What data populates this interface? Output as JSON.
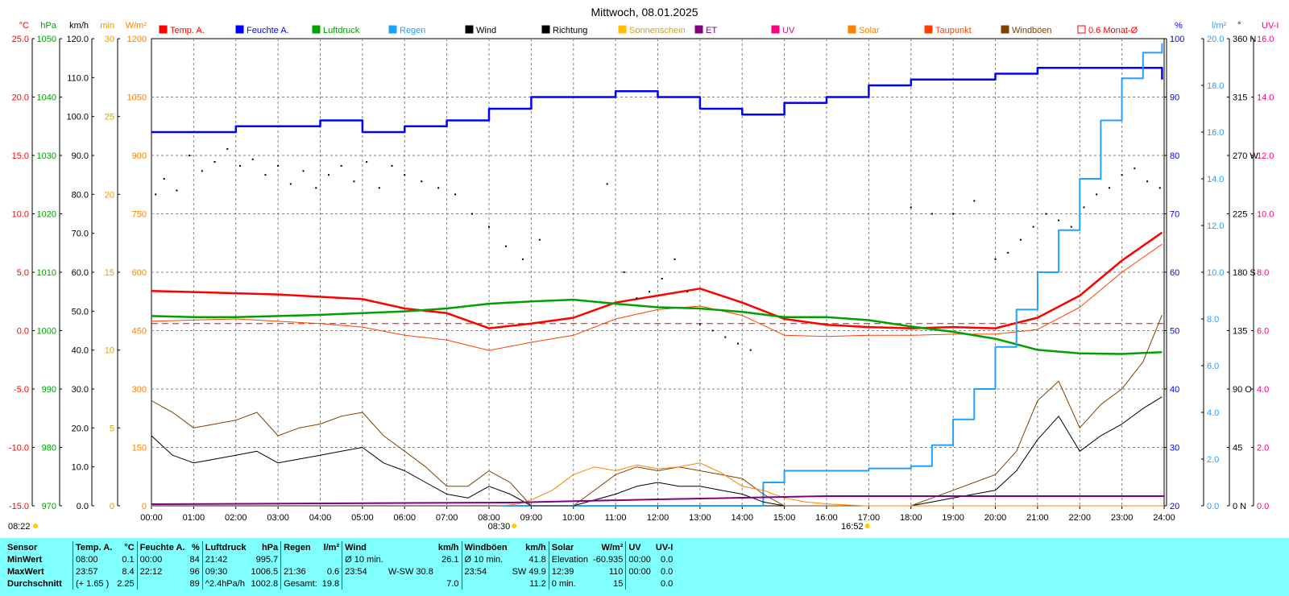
{
  "chart_data": {
    "type": "line",
    "title": "Mittwoch, 08.01.2025",
    "x_ticks": [
      "00:00",
      "01:00",
      "02:00",
      "03:00",
      "04:00",
      "05:00",
      "06:00",
      "07:00",
      "08:00",
      "09:00",
      "10:00",
      "11:00",
      "12:00",
      "13:00",
      "14:00",
      "15:00",
      "16:00",
      "17:00",
      "18:00",
      "19:00",
      "20:00",
      "21:00",
      "22:00",
      "23:00",
      "24:00"
    ],
    "x_range_hours": [
      0,
      24
    ],
    "grid": true,
    "legend_position": "top",
    "legend": [
      {
        "name": "Temp. A.",
        "color": "#ff0000"
      },
      {
        "name": "Feuchte A.",
        "color": "#0000ff"
      },
      {
        "name": "Luftdruck",
        "color": "#00a000"
      },
      {
        "name": "Regen",
        "color": "#20a0ff"
      },
      {
        "name": "Wind",
        "color": "#000000"
      },
      {
        "name": "Richtung",
        "color": "#000000"
      },
      {
        "name": "Sonnenschein",
        "color": "#ffc000"
      },
      {
        "name": "ET",
        "color": "#800080"
      },
      {
        "name": "UV",
        "color": "#ff0080"
      },
      {
        "name": "Solar",
        "color": "#ff8000"
      },
      {
        "name": "Taupunkt",
        "color": "#ff4000"
      },
      {
        "name": "Windböen",
        "color": "#804000"
      },
      {
        "name": "0.6 Monat-Ø",
        "color": "#ff0000"
      }
    ],
    "axes": {
      "left": [
        {
          "unit": "°C",
          "color": "#ff0000",
          "range": [
            -15,
            25
          ],
          "ticks": [
            "25.0",
            "20.0",
            "15.0",
            "10.0",
            "5.0",
            "0.0",
            "-5.0",
            "-10.0",
            "-15.0"
          ]
        },
        {
          "unit": "hPa",
          "color": "#00a000",
          "range": [
            970,
            1050
          ],
          "ticks": [
            "1050",
            "1040",
            "1030",
            "1020",
            "1010",
            "1000",
            "990",
            "980",
            "970"
          ]
        },
        {
          "unit": "km/h",
          "color": "#000000",
          "range": [
            0,
            120
          ],
          "ticks": [
            "120.0",
            "110.0",
            "100.0",
            "90.0",
            "80.0",
            "70.0",
            "60.0",
            "50.0",
            "40.0",
            "30.0",
            "20.0",
            "10.0",
            "0.0"
          ]
        },
        {
          "unit": "min",
          "color": "#ffa000",
          "range": [
            0,
            30
          ],
          "ticks": [
            "30",
            "25",
            "20",
            "15",
            "10",
            "5",
            "0"
          ]
        },
        {
          "unit": "W/m²",
          "color": "#ff8000",
          "range": [
            0,
            1200
          ],
          "ticks": [
            "1200",
            "1050",
            "900",
            "750",
            "600",
            "450",
            "300",
            "150",
            "0"
          ]
        }
      ],
      "right": [
        {
          "unit": "%",
          "color": "#0000ff",
          "range": [
            20,
            100
          ],
          "ticks": [
            "100",
            "90",
            "80",
            "70",
            "60",
            "50",
            "40",
            "30",
            "20"
          ]
        },
        {
          "unit": "l/m²",
          "color": "#20a0ff",
          "range": [
            0,
            20
          ],
          "ticks": [
            "20.0",
            "18.0",
            "16.0",
            "14.0",
            "12.0",
            "10.0",
            "8.0",
            "6.0",
            "4.0",
            "2.0",
            "0.0"
          ]
        },
        {
          "unit": "°",
          "color": "#000000",
          "range": [
            0,
            360
          ],
          "ticks": [
            "360 N",
            "315",
            "270 W",
            "225",
            "180 S",
            "135",
            "90 O",
            "45",
            "0 N"
          ]
        },
        {
          "unit": "UV-I",
          "color": "#ff0080",
          "range": [
            0,
            16
          ],
          "ticks": [
            "16.0",
            "14.0",
            "12.0",
            "10.0",
            "8.0",
            "6.0",
            "4.0",
            "2.0",
            "0.0"
          ]
        }
      ]
    },
    "sun_labels": {
      "sunrise": "08:22",
      "sunrise_marker": "08:30",
      "sunset": "16:52"
    },
    "series": [
      {
        "name": "Temp. A.",
        "axis": "°C",
        "x": [
          0,
          1,
          2,
          3,
          4,
          5,
          6,
          7,
          8,
          9,
          10,
          11,
          12,
          13,
          14,
          15,
          16,
          17,
          18,
          19,
          20,
          21,
          22,
          23,
          23.95
        ],
        "values": [
          3.4,
          3.3,
          3.2,
          3.1,
          2.9,
          2.7,
          1.9,
          1.5,
          0.2,
          0.6,
          1.1,
          2.4,
          3.0,
          3.6,
          2.4,
          1.0,
          0.5,
          0.3,
          0.2,
          0.3,
          0.2,
          1.1,
          3.0,
          6.0,
          8.4
        ]
      },
      {
        "name": "Taupunkt",
        "axis": "°C",
        "x": [
          0,
          1,
          2,
          3,
          4,
          5,
          6,
          7,
          8,
          9,
          10,
          11,
          12,
          13,
          14,
          15,
          16,
          17,
          18,
          19,
          20,
          21,
          22,
          23,
          23.95
        ],
        "values": [
          0.8,
          0.9,
          1.0,
          0.8,
          0.6,
          0.3,
          -0.4,
          -0.8,
          -1.7,
          -1.0,
          -0.4,
          1.0,
          1.8,
          2.1,
          1.3,
          -0.4,
          -0.5,
          -0.4,
          -0.4,
          -0.3,
          -0.3,
          0.1,
          2.0,
          5.0,
          7.4
        ]
      },
      {
        "name": "Feuchte A.",
        "axis": "%",
        "x": [
          0,
          1,
          2,
          3,
          4,
          5,
          6,
          7,
          8,
          9,
          10,
          11,
          12,
          13,
          14,
          15,
          16,
          17,
          18,
          19,
          20,
          21,
          22,
          23,
          23.95
        ],
        "values": [
          84,
          84,
          85,
          85,
          86,
          84,
          85,
          86,
          88,
          90,
          90,
          91,
          90,
          88,
          87,
          89,
          90,
          92,
          93,
          93,
          94,
          95,
          95,
          95,
          93
        ]
      },
      {
        "name": "Luftdruck",
        "axis": "hPa",
        "x": [
          0,
          1,
          2,
          3,
          4,
          5,
          6,
          7,
          8,
          9,
          10,
          11,
          12,
          13,
          14,
          15,
          16,
          17,
          18,
          19,
          20,
          21,
          22,
          23,
          23.95
        ],
        "values": [
          1002.5,
          1002.3,
          1002.3,
          1002.5,
          1002.7,
          1003.0,
          1003.3,
          1003.8,
          1004.6,
          1005.0,
          1005.3,
          1004.6,
          1004.0,
          1003.8,
          1003.2,
          1002.3,
          1002.3,
          1001.8,
          1000.7,
          999.8,
          998.6,
          996.7,
          996.1,
          996.0,
          996.3
        ]
      },
      {
        "name": "Regen",
        "axis": "l/m²",
        "x": [
          0,
          13.5,
          14.5,
          15,
          16,
          17,
          18,
          18.5,
          19,
          19.5,
          20,
          20.5,
          21,
          21.5,
          22,
          22.5,
          23,
          23.5,
          23.95
        ],
        "values": [
          0.0,
          0.0,
          1.0,
          1.5,
          1.5,
          1.6,
          1.7,
          2.6,
          3.7,
          5.0,
          6.8,
          8.4,
          10.0,
          11.8,
          14.0,
          16.5,
          18.3,
          19.4,
          19.8
        ]
      },
      {
        "name": "Wind",
        "axis": "km/h",
        "x": [
          0,
          0.5,
          1,
          1.5,
          2,
          2.5,
          3,
          3.5,
          4,
          4.5,
          5,
          5.5,
          6,
          6.5,
          7,
          7.5,
          8,
          8.5,
          9,
          10,
          11,
          11.5,
          12,
          12.5,
          13,
          13.5,
          14,
          14.5,
          15,
          16,
          17,
          18,
          18.5,
          19,
          19.5,
          20,
          20.5,
          21,
          21.5,
          22,
          22.5,
          23,
          23.5,
          23.95
        ],
        "values": [
          18,
          13,
          11,
          12,
          13,
          14,
          11,
          12,
          13,
          14,
          15,
          11,
          9,
          6,
          3,
          2,
          5,
          3,
          0,
          0,
          3,
          5,
          6,
          5,
          5,
          4,
          3,
          1,
          0,
          0,
          0,
          0,
          1,
          2,
          3,
          4,
          9,
          17,
          23,
          14,
          18,
          21,
          25,
          28
        ]
      },
      {
        "name": "Windböen",
        "axis": "km/h",
        "x": [
          0,
          0.5,
          1,
          1.5,
          2,
          2.5,
          3,
          3.5,
          4,
          4.5,
          5,
          5.5,
          6,
          6.5,
          7,
          7.5,
          8,
          8.5,
          9,
          10,
          11,
          11.5,
          12,
          12.5,
          13,
          13.5,
          14,
          14.5,
          15,
          16,
          17,
          18,
          18.5,
          19,
          19.5,
          20,
          20.5,
          21,
          21.5,
          22,
          22.5,
          23,
          23.5,
          23.95
        ],
        "values": [
          27,
          24,
          20,
          21,
          22,
          24,
          18,
          20,
          21,
          23,
          24,
          18,
          14,
          10,
          5,
          5,
          9,
          6,
          0,
          0,
          8,
          10,
          9,
          10,
          9,
          8,
          7,
          3,
          0,
          0,
          0,
          0,
          2,
          4,
          6,
          8,
          14,
          27,
          32,
          20,
          26,
          30,
          37,
          49
        ]
      },
      {
        "name": "Solar",
        "axis": "W/m²",
        "x": [
          0,
          8.3,
          8.7,
          9,
          9.5,
          10,
          10.5,
          11,
          11.5,
          12,
          12.5,
          13,
          13.5,
          14,
          14.5,
          15,
          15.5,
          16,
          16.5,
          16.9,
          24
        ],
        "values": [
          0,
          0,
          5,
          15,
          40,
          80,
          100,
          90,
          105,
          95,
          100,
          110,
          85,
          50,
          40,
          20,
          10,
          5,
          2,
          0,
          0
        ]
      },
      {
        "name": "ET",
        "axis": "mm",
        "x": [
          0,
          8.5,
          12,
          16,
          17,
          24
        ],
        "values": [
          0,
          0.1,
          0.3,
          0.5,
          0.5,
          0.5
        ]
      },
      {
        "name": "Richtung",
        "axis": "°",
        "type": "scatter",
        "x": [
          0.1,
          0.3,
          0.6,
          0.9,
          1.2,
          1.5,
          1.8,
          2.1,
          2.4,
          2.7,
          3.0,
          3.3,
          3.6,
          3.9,
          4.2,
          4.5,
          4.8,
          5.1,
          5.4,
          5.7,
          6.0,
          6.4,
          6.8,
          7.2,
          7.6,
          8.0,
          8.4,
          8.8,
          9.2,
          10.8,
          11.2,
          11.5,
          11.8,
          12.1,
          12.4,
          12.7,
          13.0,
          13.3,
          13.6,
          13.9,
          14.2,
          18.0,
          18.5,
          19.0,
          19.5,
          20.0,
          20.3,
          20.6,
          20.9,
          21.2,
          21.5,
          21.8,
          22.1,
          22.4,
          22.7,
          23.0,
          23.3,
          23.6,
          23.9
        ],
        "values": [
          240,
          252,
          243,
          270,
          258,
          265,
          275,
          262,
          267,
          255,
          262,
          248,
          258,
          245,
          255,
          262,
          250,
          265,
          245,
          262,
          255,
          250,
          245,
          240,
          225,
          215,
          200,
          190,
          205,
          248,
          180,
          160,
          165,
          175,
          190,
          165,
          140,
          135,
          130,
          125,
          120,
          230,
          225,
          225,
          235,
          190,
          195,
          205,
          215,
          225,
          220,
          215,
          230,
          240,
          245,
          255,
          260,
          250,
          245
        ]
      }
    ],
    "reference_lines": [
      {
        "name": "0.6 Monat-Ø",
        "axis": "°C",
        "value": 0.6,
        "style": "dashed"
      }
    ]
  },
  "stats": {
    "headers": [
      {
        "label": "Sensor",
        "unit": ""
      },
      {
        "label": "Temp. A.",
        "unit": "°C"
      },
      {
        "label": "Feuchte A.",
        "unit": "%"
      },
      {
        "label": "Luftdruck",
        "unit": "hPa"
      },
      {
        "label": "Regen",
        "unit": "l/m²"
      },
      {
        "label": "Wind",
        "unit": "km/h"
      },
      {
        "label": "Windböen",
        "unit": "km/h"
      },
      {
        "label": "Solar",
        "unit": "W/m²"
      },
      {
        "label": "UV",
        "unit": "UV-I"
      }
    ],
    "rows": [
      {
        "label": "MinWert",
        "cells": [
          [
            "08:00",
            "0.1"
          ],
          [
            "00:00",
            "84"
          ],
          [
            "21:42",
            "995.7"
          ],
          [
            "",
            ""
          ],
          [
            "Ø 10 min.",
            "",
            "26.1"
          ],
          [
            "Ø 10 min.",
            "41.8"
          ],
          [
            "Elevation",
            "-60.935"
          ],
          [
            "00:00",
            "0.0"
          ]
        ]
      },
      {
        "label": "MaxWert",
        "cells": [
          [
            "23:57",
            "8.4"
          ],
          [
            "22:12",
            "96"
          ],
          [
            "09:30",
            "1006.5"
          ],
          [
            "21:36",
            "0.6"
          ],
          [
            "23:54",
            "W-SW 30.8",
            ""
          ],
          [
            "23:54",
            "SW 49.9"
          ],
          [
            "12:39",
            "110"
          ],
          [
            "00:00",
            "0.0"
          ]
        ]
      },
      {
        "label": "Durchschnitt",
        "cells": [
          [
            "(+ 1.65 )",
            "2.25"
          ],
          [
            "",
            "89"
          ],
          [
            "^2.4hPa/h",
            "1002.8"
          ],
          [
            "Gesamt:",
            "19.8"
          ],
          [
            "",
            "",
            "7.0"
          ],
          [
            "",
            "11.2"
          ],
          [
            "0 min.",
            "15"
          ],
          [
            "",
            "0.0"
          ]
        ]
      }
    ]
  }
}
